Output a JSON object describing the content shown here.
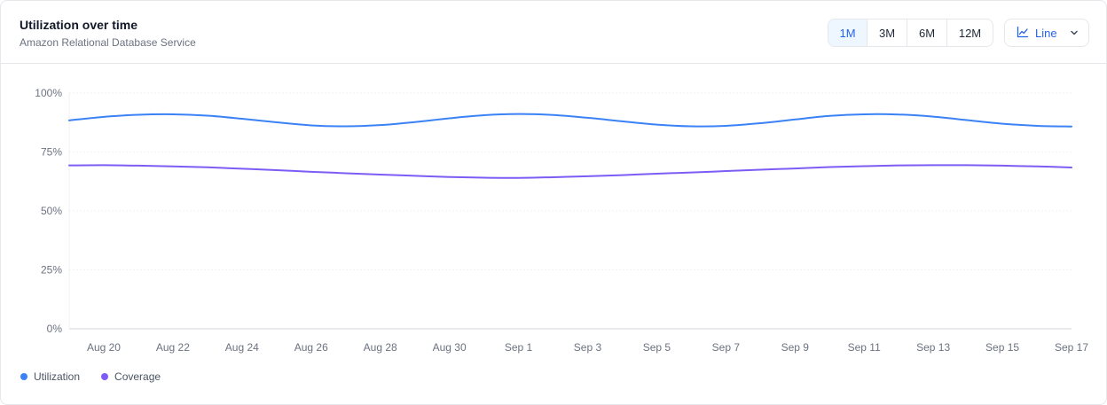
{
  "header": {
    "title": "Utilization over time",
    "subtitle": "Amazon Relational Database Service"
  },
  "range_tabs": [
    {
      "label": "1M",
      "active": true
    },
    {
      "label": "3M",
      "active": false
    },
    {
      "label": "6M",
      "active": false
    },
    {
      "label": "12M",
      "active": false
    }
  ],
  "chart_type_select": {
    "label": "Line",
    "icon": "line-chart-icon"
  },
  "colors": {
    "utilization": "#3b82f6",
    "coverage": "#7c5cf5",
    "accent": "#2563eb"
  },
  "chart_data": {
    "type": "line",
    "x_tick_labels": [
      "Aug 20",
      "Aug 22",
      "Aug 24",
      "Aug 26",
      "Aug 28",
      "Aug 30",
      "Sep 1",
      "Sep 3",
      "Sep 5",
      "Sep 7",
      "Sep 9",
      "Sep 11",
      "Sep 13",
      "Sep 15",
      "Sep 17"
    ],
    "y_tick_labels": [
      "0%",
      "25%",
      "50%",
      "75%",
      "100%"
    ],
    "ylim": [
      0,
      100
    ],
    "grid": true,
    "legend_position": "bottom-left",
    "x": [
      "Aug 19",
      "Aug 20",
      "Aug 21",
      "Aug 22",
      "Aug 23",
      "Aug 24",
      "Aug 25",
      "Aug 26",
      "Aug 27",
      "Aug 28",
      "Aug 29",
      "Aug 30",
      "Aug 31",
      "Sep 1",
      "Sep 2",
      "Sep 3",
      "Sep 4",
      "Sep 5",
      "Sep 6",
      "Sep 7",
      "Sep 8",
      "Sep 9",
      "Sep 10",
      "Sep 11",
      "Sep 12",
      "Sep 13",
      "Sep 14",
      "Sep 15",
      "Sep 16",
      "Sep 17"
    ],
    "series": [
      {
        "name": "Utilization",
        "values": [
          88.4,
          89.9,
          90.8,
          91.0,
          90.4,
          89.1,
          87.6,
          86.3,
          85.9,
          86.4,
          87.7,
          89.3,
          90.6,
          91.1,
          90.7,
          89.5,
          88.0,
          86.6,
          85.9,
          86.1,
          87.2,
          88.8,
          90.3,
          91.0,
          90.9,
          90.0,
          88.5,
          87.0,
          86.1,
          85.8
        ]
      },
      {
        "name": "Coverage",
        "values": [
          69.3,
          69.4,
          69.2,
          68.9,
          68.5,
          67.9,
          67.3,
          66.6,
          66.0,
          65.4,
          64.9,
          64.4,
          64.1,
          64.0,
          64.3,
          64.7,
          65.2,
          65.8,
          66.3,
          66.9,
          67.5,
          68.0,
          68.6,
          69.0,
          69.3,
          69.4,
          69.4,
          69.2,
          68.9,
          68.4
        ]
      }
    ]
  }
}
